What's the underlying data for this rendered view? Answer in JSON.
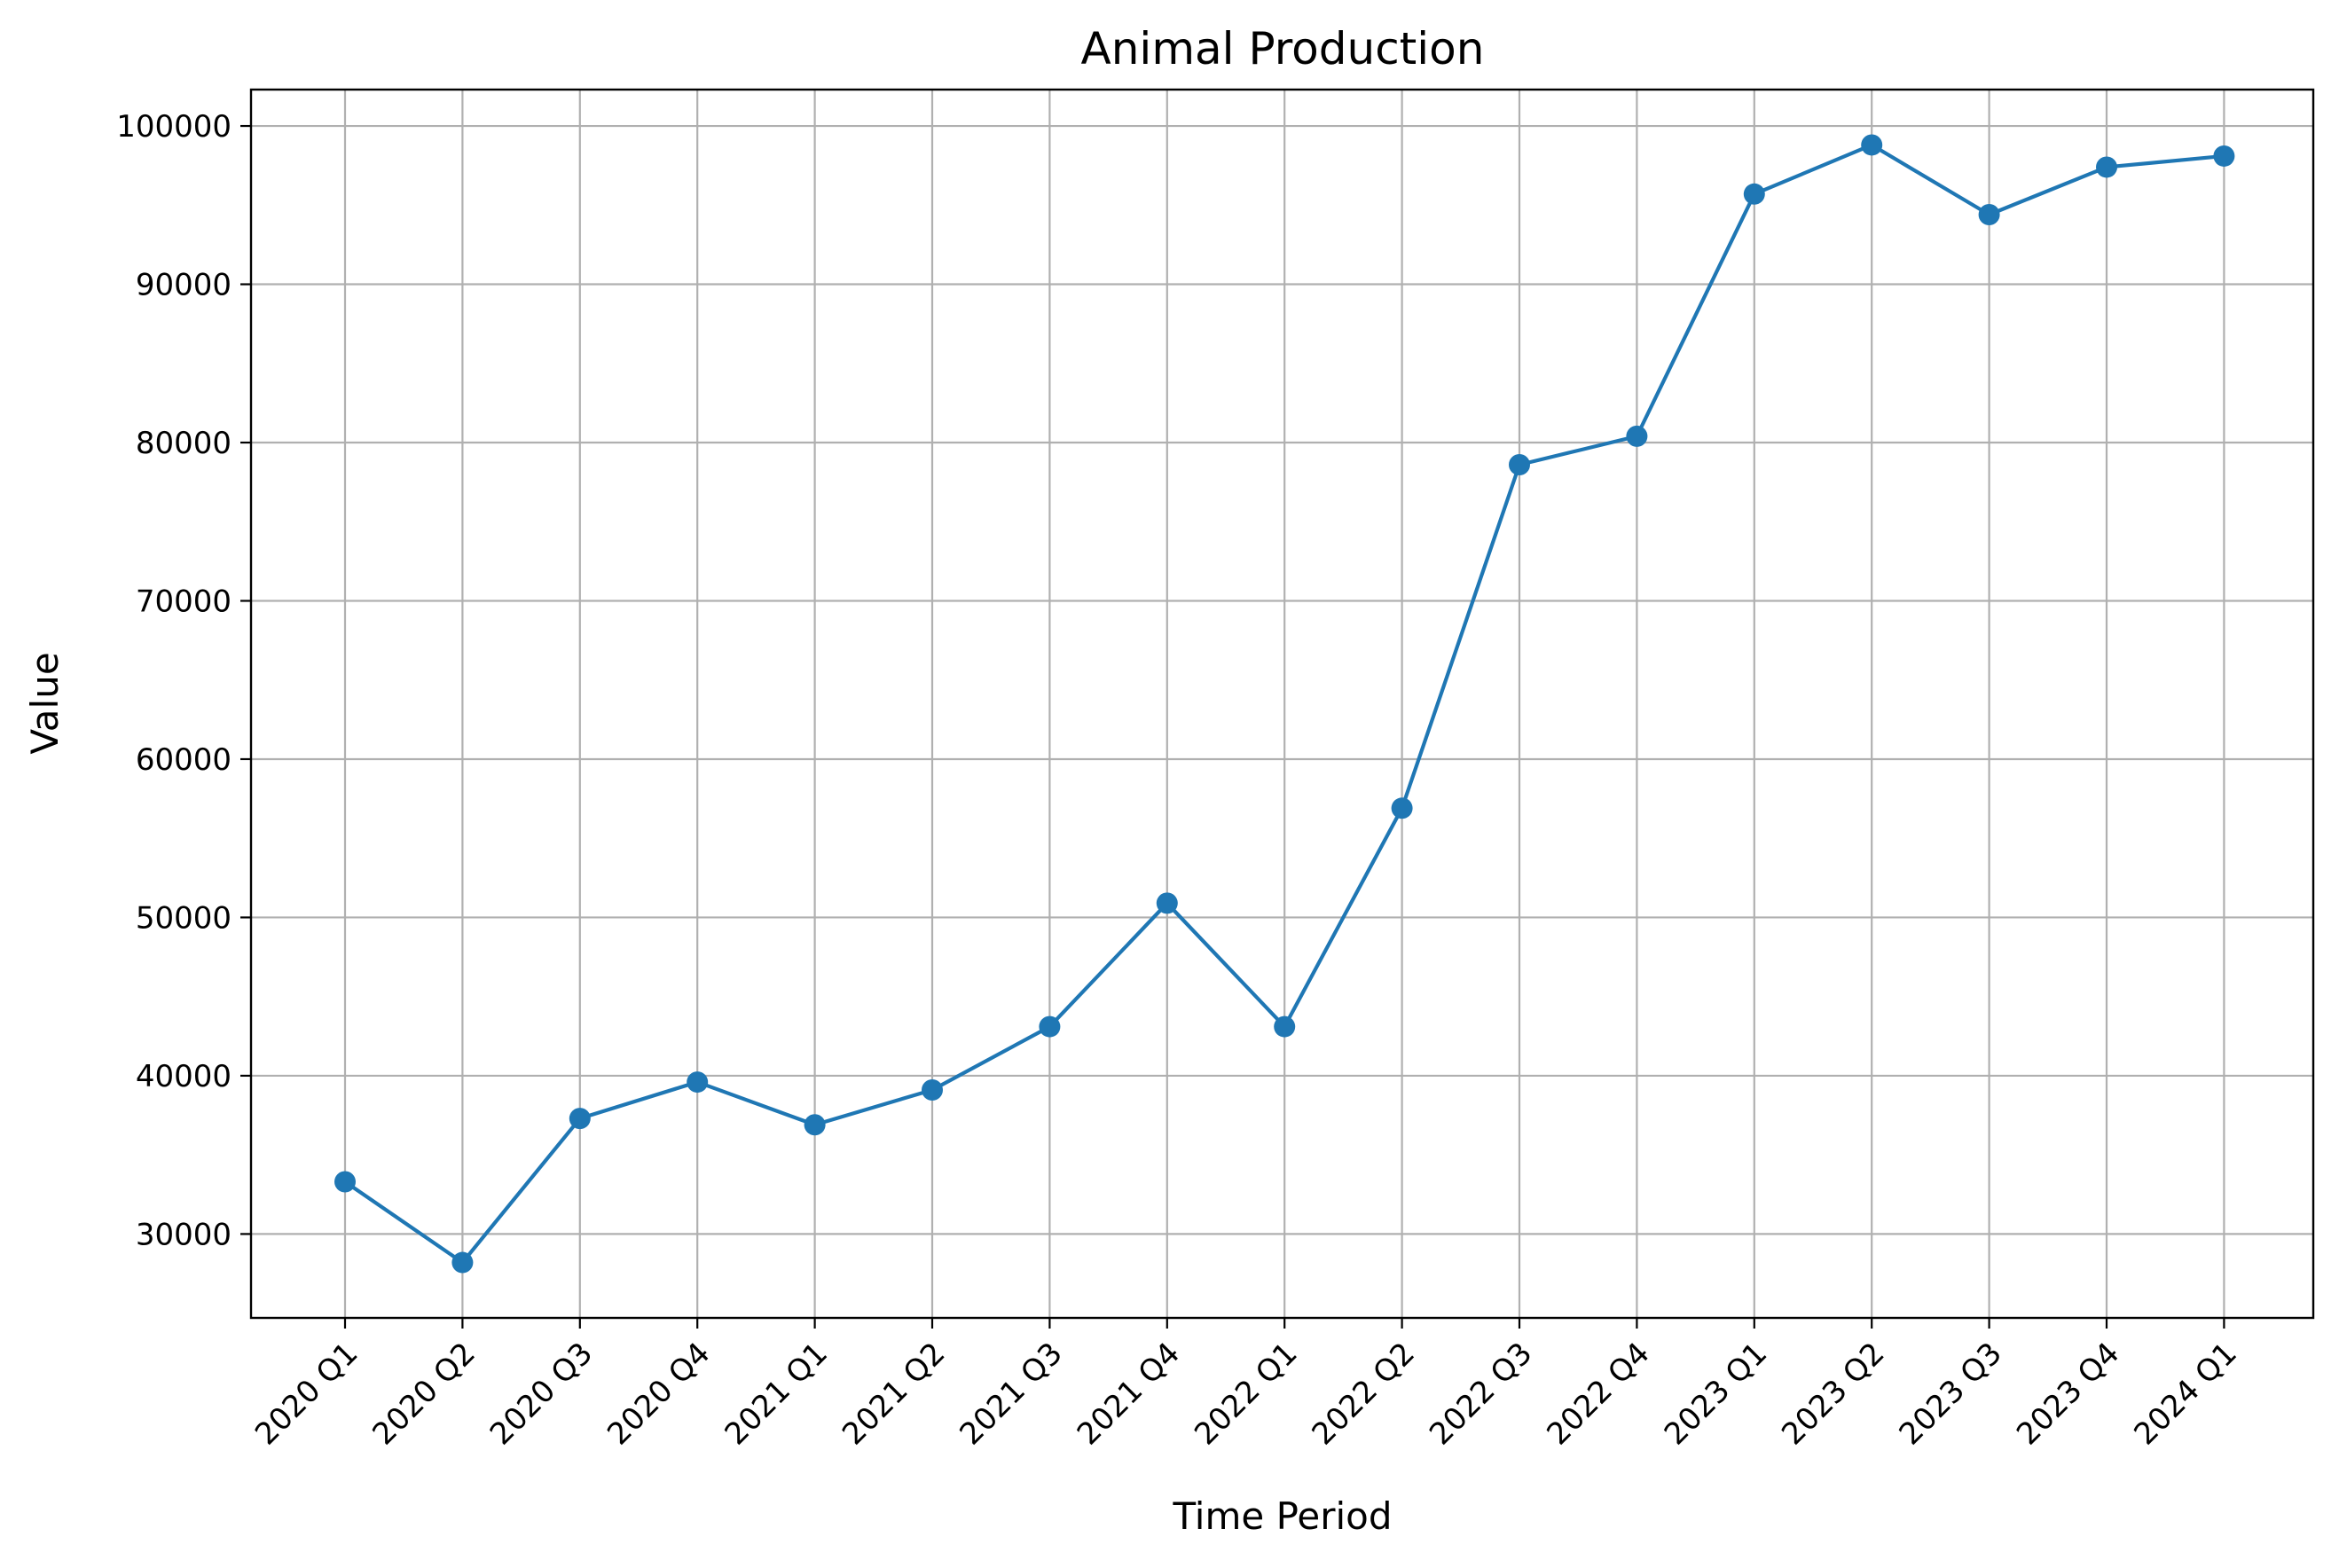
{
  "chart_data": {
    "type": "line",
    "title": "Animal Production",
    "xlabel": "Time Period",
    "ylabel": "Value",
    "categories": [
      "2020 Q1",
      "2020 Q2",
      "2020 Q3",
      "2020 Q4",
      "2021 Q1",
      "2021 Q2",
      "2021 Q3",
      "2021 Q4",
      "2022 Q1",
      "2022 Q2",
      "2022 Q3",
      "2022 Q4",
      "2023 Q1",
      "2023 Q2",
      "2023 Q3",
      "2023 Q4",
      "2024 Q1"
    ],
    "series": [
      {
        "values": [
          33300,
          28200,
          37300,
          39600,
          36900,
          39100,
          43100,
          50900,
          43100,
          56900,
          78600,
          80400,
          95700,
          98800,
          94400,
          97400,
          98100
        ],
        "color": "#1f77b4",
        "marker": "circle"
      }
    ],
    "yticks": [
      30000,
      40000,
      50000,
      60000,
      70000,
      80000,
      90000,
      100000
    ],
    "ylim": [
      24700,
      102300
    ],
    "grid": true,
    "legend": "none"
  }
}
